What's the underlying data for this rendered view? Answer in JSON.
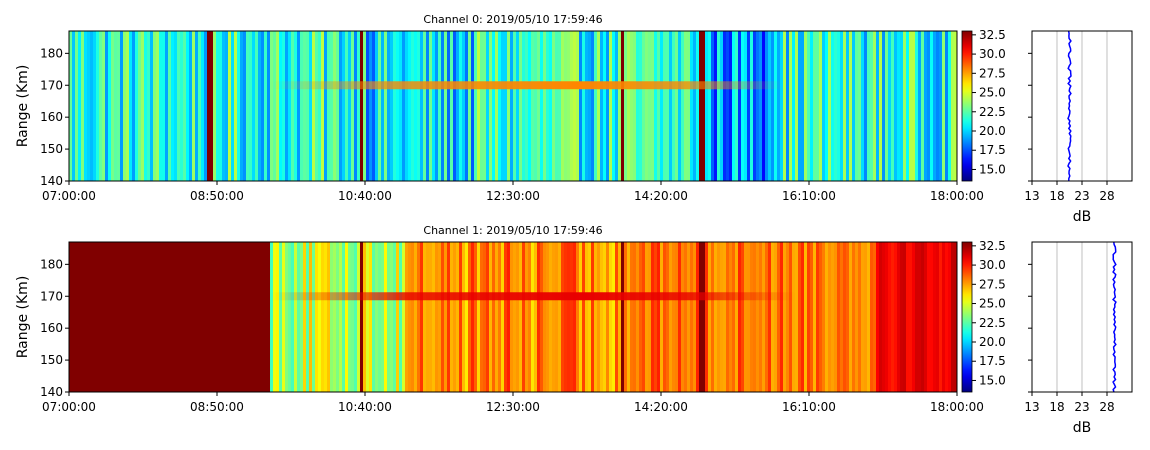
{
  "chart_data": [
    {
      "type": "heatmap",
      "title": "Channel 0: 2019/05/10 17:59:46",
      "ylabel": "Range (Km)",
      "xticks": [
        "07:00:00",
        "08:50:00",
        "10:40:00",
        "12:30:00",
        "14:20:00",
        "16:10:00",
        "18:00:00"
      ],
      "yticks": [
        140,
        150,
        160,
        170,
        180
      ],
      "ylim": [
        140,
        187
      ],
      "colorbar": {
        "ticks": [
          "15.0",
          "17.5",
          "20.0",
          "22.5",
          "25.0",
          "27.5",
          "30.0",
          "32.5"
        ],
        "range": [
          13.5,
          33
        ],
        "colormap": "jet"
      },
      "features": {
        "baseline_db": 21.5,
        "bright_layer_range_km": 170,
        "bright_layer_time_span": [
          "09:30:00",
          "15:50:00"
        ],
        "bright_layer_peak_db": 28,
        "vertical_streaks": [
          "08:45:00",
          "10:38:00",
          "13:52:00",
          "14:50:00"
        ]
      },
      "profile": {
        "xlabel": "dB",
        "xticks": [
          13,
          18,
          23,
          28
        ],
        "xlim": [
          13,
          33
        ],
        "value_db": 20.5
      }
    },
    {
      "type": "heatmap",
      "title": "Channel 1: 2019/05/10 17:59:46",
      "ylabel": "Range (Km)",
      "xticks": [
        "07:00:00",
        "08:50:00",
        "10:40:00",
        "12:30:00",
        "14:20:00",
        "16:10:00",
        "18:00:00"
      ],
      "yticks": [
        140,
        150,
        160,
        170,
        180
      ],
      "ylim": [
        140,
        187
      ],
      "colorbar": {
        "ticks": [
          "15.0",
          "17.5",
          "20.0",
          "22.5",
          "25.0",
          "27.5",
          "30.0",
          "32.5"
        ],
        "range": [
          13.5,
          33
        ],
        "colormap": "jet"
      },
      "features": {
        "saturated_until": "09:30:00",
        "saturated_db": 33,
        "bright_layer_range_km": 170,
        "vertical_streaks": [
          "10:38:00",
          "13:52:00",
          "14:50:00"
        ]
      },
      "profile": {
        "xlabel": "dB",
        "xticks": [
          13,
          18,
          23,
          28
        ],
        "xlim": [
          13,
          33
        ],
        "value_db": 29.5
      }
    }
  ]
}
